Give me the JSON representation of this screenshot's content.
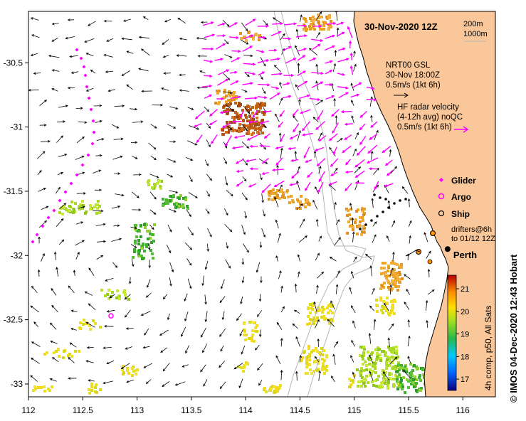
{
  "title": "30-Nov-2020 12Z",
  "scale_labels": [
    "200m",
    "1000m"
  ],
  "axes": {
    "x_ticks": [
      "112",
      "112.5",
      "113",
      "113.5",
      "114",
      "114.5",
      "115",
      "115.5",
      "116"
    ],
    "y_ticks": [
      "-30.5",
      "-31",
      "-31.5",
      "-32",
      "-32.5",
      "-33"
    ]
  },
  "extent": {
    "lon": [
      112,
      116.3
    ],
    "lat": [
      -33.1,
      -30.1
    ]
  },
  "legend": {
    "gsl_lines": [
      "NRT00 GSL",
      "30-Nov 18:00Z",
      "0.5m/s (1kt 6h)"
    ],
    "hf_lines": [
      "HF radar velocity",
      "(4-12h avg) noQC",
      "0.5m/s (1kt 6h)"
    ],
    "glider": "Glider",
    "argo": "Argo",
    "ship": "Ship",
    "drifter_lines": [
      "drifters@6h",
      "to 01/12 12Z"
    ]
  },
  "places": {
    "perth": {
      "name": "Perth",
      "lon": 115.86,
      "lat": -31.95
    }
  },
  "argo_float": {
    "lon": 112.76,
    "lat": -32.47
  },
  "colorbar": {
    "ticks": [
      "21",
      "20",
      "19",
      "18",
      "17"
    ],
    "caption": "4h comp, p50, All Sats",
    "range": [
      16.5,
      21.6
    ]
  },
  "credit": "© IMOS 04-Dec-2020 12:43 Hobart",
  "colors": {
    "land": "#f9c79a",
    "glider": "#ff00ff",
    "isobath": "#b4b4b4"
  }
}
